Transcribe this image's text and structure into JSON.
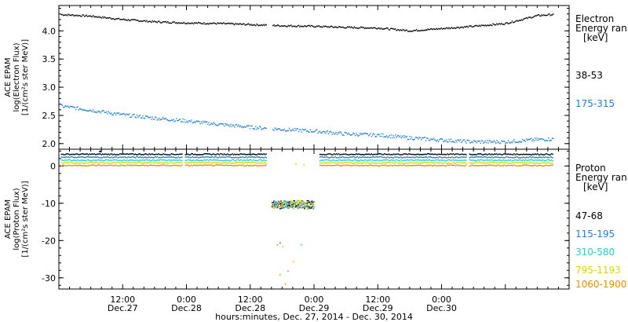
{
  "chart_data": [
    {
      "type": "scatter",
      "ylabel_lines": [
        "ACE EPAM",
        "log(Electron Flux)",
        "[1/(cm²s ster MeV)]"
      ],
      "yticks": [
        2.0,
        2.5,
        3.0,
        3.5,
        4.0
      ],
      "ylim": [
        1.9,
        4.45
      ],
      "xlim": [
        0,
        96
      ],
      "legend_title": [
        "Electron",
        "Energy ran",
        "[keV]"
      ],
      "series": [
        {
          "name": "38-53",
          "color": "#000000",
          "x": [
            0,
            6,
            12,
            18,
            24,
            30,
            36,
            42,
            48,
            54,
            60,
            66,
            72,
            78,
            84,
            90,
            93
          ],
          "values": [
            4.3,
            4.27,
            4.21,
            4.17,
            4.15,
            4.14,
            4.12,
            4.1,
            4.09,
            4.07,
            4.06,
            4.01,
            4.05,
            4.09,
            4.14,
            4.28,
            4.3
          ]
        },
        {
          "name": "175-315",
          "color": "#1f7fd6",
          "x": [
            0,
            6,
            12,
            18,
            24,
            30,
            36,
            42,
            48,
            54,
            60,
            66,
            72,
            78,
            84,
            90,
            93
          ],
          "values": [
            2.68,
            2.6,
            2.52,
            2.46,
            2.41,
            2.35,
            2.3,
            2.26,
            2.23,
            2.18,
            2.16,
            2.11,
            2.07,
            2.04,
            2.04,
            2.08,
            2.09
          ]
        }
      ]
    },
    {
      "type": "scatter",
      "ylabel_lines": [
        "ACE EPAM",
        "log(Proton Flux)",
        "[1/(cm²s ster MeV)]"
      ],
      "yticks": [
        0,
        -10,
        -20,
        -30
      ],
      "ylim": [
        -33,
        4.5
      ],
      "xlim": [
        0,
        96
      ],
      "legend_title": [
        "Proton",
        "Energy ran",
        "[keV]"
      ],
      "series": [
        {
          "name": "47-68",
          "color": "#000000",
          "level": 3.3
        },
        {
          "name": "115-195",
          "color": "#1f7fd6",
          "level": 2.5
        },
        {
          "name": "310-580",
          "color": "#1fd0d0",
          "level": 1.7
        },
        {
          "name": "795-1193",
          "color": "#d8d800",
          "level": 1.0
        },
        {
          "name": "1060-1900",
          "color": "#f08c00",
          "level": 0.3
        }
      ],
      "gap_ranges": [
        [
          39,
          49
        ]
      ],
      "anomalies": {
        "x_range": [
          40,
          48
        ],
        "band_values": [
          -9.5,
          -10.0,
          -10.5,
          -11.0
        ],
        "scatter": [
          {
            "x": 41.5,
            "y": -20.5,
            "color": "#1f7fd6"
          },
          {
            "x": 42.0,
            "y": -21.5,
            "color": "#d8d800"
          },
          {
            "x": 41.0,
            "y": -21.0,
            "color": "#f08c00"
          },
          {
            "x": 45.5,
            "y": -21.0,
            "color": "#1fd0d0"
          },
          {
            "x": 43.0,
            "y": -28.0,
            "color": "#f08c00"
          },
          {
            "x": 41.5,
            "y": -29.0,
            "color": "#f08c00"
          },
          {
            "x": 42.5,
            "y": -31.5,
            "color": "#f08c00"
          },
          {
            "x": 44.0,
            "y": -25.5,
            "color": "#d8d800"
          },
          {
            "x": 44.5,
            "y": 0.7,
            "color": "#d8d800"
          },
          {
            "x": 46.0,
            "y": 0.5,
            "color": "#d8d800"
          }
        ]
      }
    }
  ],
  "x_axis": {
    "ticks": [
      {
        "x": 12,
        "time": "12:00",
        "day": "Dec.27"
      },
      {
        "x": 24,
        "time": "0:00",
        "day": "Dec.28"
      },
      {
        "x": 36,
        "time": "12:00",
        "day": "Dec.28"
      },
      {
        "x": 48,
        "time": "0:00",
        "day": "Dec.29"
      },
      {
        "x": 60,
        "time": "12:00",
        "day": "Dec.29"
      },
      {
        "x": 72,
        "time": "0:00",
        "day": "Dec.30"
      }
    ],
    "label": "hours:minutes, Dec. 27, 2014 - Dec. 30, 2014"
  }
}
